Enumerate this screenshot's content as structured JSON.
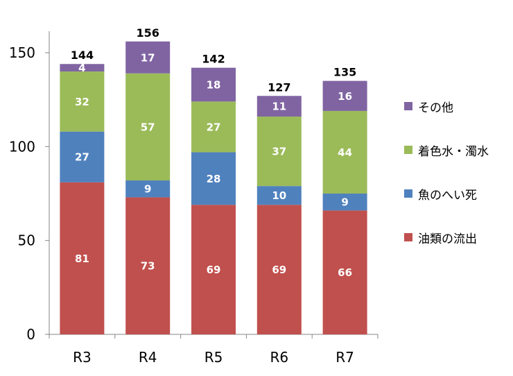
{
  "chart_data": {
    "type": "bar",
    "stacked": true,
    "title": "",
    "xlabel": "",
    "ylabel": "",
    "categories": [
      "R3",
      "R4",
      "R5",
      "R6",
      "R7"
    ],
    "ylim": [
      0,
      160
    ],
    "yticks": [
      0,
      50,
      100,
      150
    ],
    "grid": false,
    "legend_position": "right",
    "series": [
      {
        "name": "油類の流出",
        "color": "#c0504d",
        "values": [
          81,
          73,
          69,
          69,
          66
        ]
      },
      {
        "name": "魚のへい死",
        "color": "#4f81bd",
        "values": [
          27,
          9,
          28,
          10,
          9
        ]
      },
      {
        "name": "着色水・濁水",
        "color": "#9bbb59",
        "values": [
          32,
          57,
          27,
          37,
          44
        ]
      },
      {
        "name": "その他",
        "color": "#8064a2",
        "values": [
          4,
          17,
          18,
          11,
          16
        ]
      }
    ],
    "totals": [
      144,
      156,
      142,
      127,
      135
    ]
  }
}
